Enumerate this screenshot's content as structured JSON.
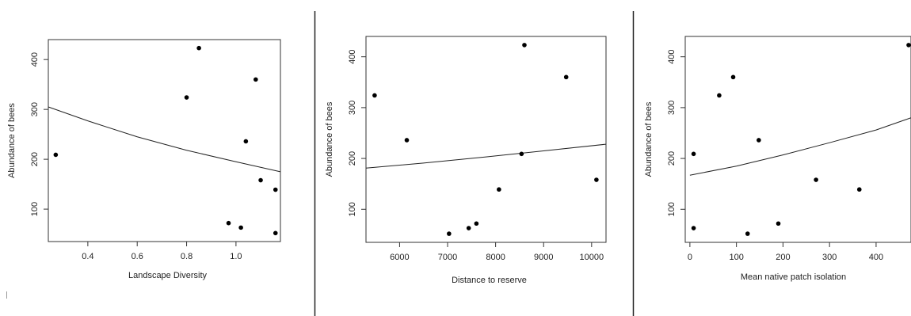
{
  "chart_data": [
    {
      "type": "scatter",
      "xlabel": "Landscape Diversity",
      "ylabel": "Abundance of bees",
      "xlim": [
        0.24,
        1.18
      ],
      "ylim": [
        35,
        440
      ],
      "xticks": [
        0.4,
        0.6,
        0.8,
        1.0
      ],
      "xtick_labels": [
        "0.4",
        "0.6",
        "0.8",
        "1.0"
      ],
      "yticks": [
        100,
        200,
        300,
        400
      ],
      "ytick_labels": [
        "100",
        "200",
        "300",
        "400"
      ],
      "grid": false,
      "points": [
        {
          "x": 0.27,
          "y": 209
        },
        {
          "x": 0.8,
          "y": 324
        },
        {
          "x": 0.85,
          "y": 423
        },
        {
          "x": 0.97,
          "y": 72
        },
        {
          "x": 1.02,
          "y": 63
        },
        {
          "x": 1.04,
          "y": 236
        },
        {
          "x": 1.08,
          "y": 360
        },
        {
          "x": 1.1,
          "y": 158
        },
        {
          "x": 1.16,
          "y": 139
        },
        {
          "x": 1.16,
          "y": 52
        }
      ],
      "fit_line": {
        "x": [
          0.24,
          0.4,
          0.6,
          0.8,
          1.0,
          1.18
        ],
        "y": [
          305,
          277,
          245,
          218,
          195,
          175
        ]
      }
    },
    {
      "type": "scatter",
      "xlabel": "Distance to reserve",
      "ylabel": "Abundance of bees",
      "xlim": [
        5300,
        10300
      ],
      "ylim": [
        35,
        440
      ],
      "xticks": [
        6000,
        7000,
        8000,
        9000,
        10000
      ],
      "xtick_labels": [
        "6000",
        "7000",
        "8000",
        "9000",
        "10000"
      ],
      "yticks": [
        100,
        200,
        300,
        400
      ],
      "ytick_labels": [
        "100",
        "200",
        "300",
        "400"
      ],
      "grid": false,
      "points": [
        {
          "x": 5480,
          "y": 324
        },
        {
          "x": 6150,
          "y": 236
        },
        {
          "x": 7030,
          "y": 52
        },
        {
          "x": 7440,
          "y": 63
        },
        {
          "x": 7600,
          "y": 72
        },
        {
          "x": 8070,
          "y": 139
        },
        {
          "x": 8540,
          "y": 209
        },
        {
          "x": 8600,
          "y": 423
        },
        {
          "x": 9470,
          "y": 360
        },
        {
          "x": 10100,
          "y": 158
        }
      ],
      "fit_line": {
        "x": [
          5300,
          6500,
          7800,
          9000,
          10300
        ],
        "y": [
          181,
          191,
          203,
          215,
          228
        ]
      }
    },
    {
      "type": "scatter",
      "xlabel": "Mean native patch isolation",
      "ylabel": "Abundance of bees",
      "xlim": [
        -10,
        475
      ],
      "ylim": [
        35,
        440
      ],
      "xticks": [
        0,
        100,
        200,
        300,
        400
      ],
      "xtick_labels": [
        "0",
        "100",
        "200",
        "300",
        "400"
      ],
      "yticks": [
        100,
        200,
        300,
        400
      ],
      "ytick_labels": [
        "100",
        "200",
        "300",
        "400"
      ],
      "grid": false,
      "points": [
        {
          "x": 8,
          "y": 209
        },
        {
          "x": 8,
          "y": 63
        },
        {
          "x": 63,
          "y": 324
        },
        {
          "x": 93,
          "y": 360
        },
        {
          "x": 124,
          "y": 52
        },
        {
          "x": 148,
          "y": 236
        },
        {
          "x": 190,
          "y": 72
        },
        {
          "x": 271,
          "y": 158
        },
        {
          "x": 364,
          "y": 139
        },
        {
          "x": 475,
          "y": 423
        }
      ],
      "fit_line": {
        "x": [
          0,
          100,
          200,
          300,
          400,
          475
        ],
        "y": [
          167,
          185,
          207,
          231,
          256,
          280
        ]
      }
    }
  ]
}
